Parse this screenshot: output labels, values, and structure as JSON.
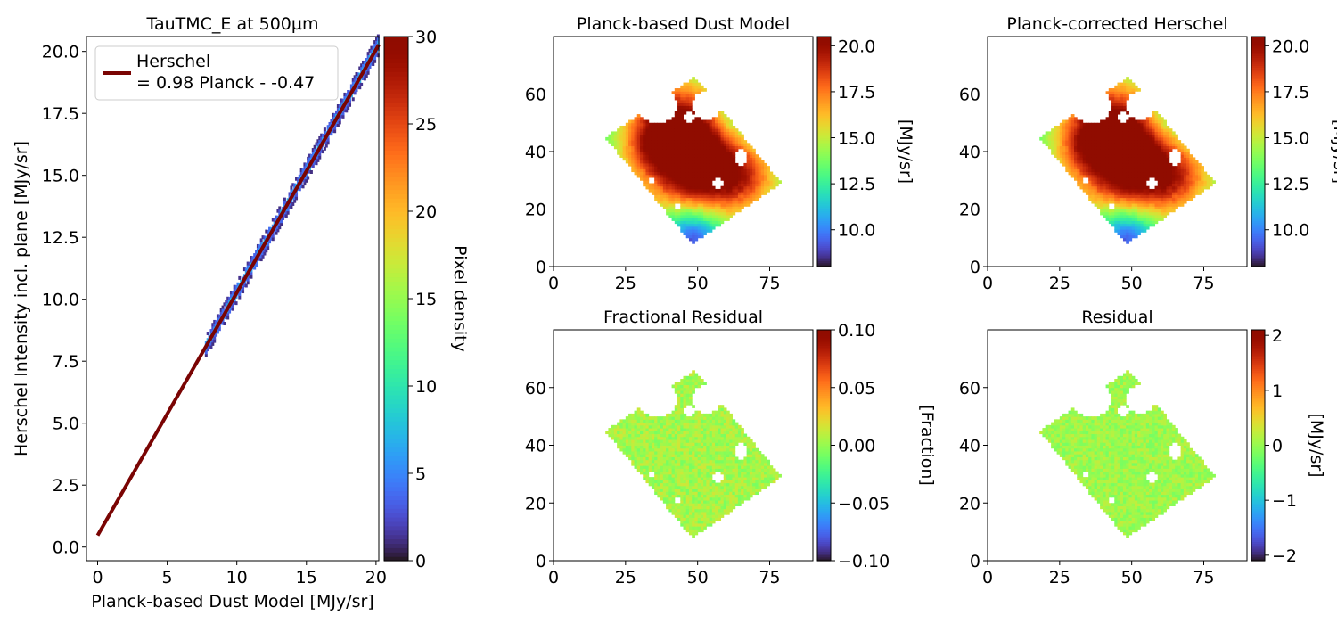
{
  "chart_data": [
    {
      "id": "scatter",
      "type": "heatmap",
      "title": "TauTMC_E at 500µm",
      "xlabel": "Planck-based Dust Model [MJy/sr]",
      "ylabel": "Herschel Intensity incl. plane [MJy/sr]",
      "xlim": [
        -0.8,
        20.2
      ],
      "ylim": [
        -0.55,
        20.6
      ],
      "xticks": [
        0,
        5,
        10,
        15,
        20
      ],
      "yticks": [
        0.0,
        2.5,
        5.0,
        7.5,
        10.0,
        12.5,
        15.0,
        17.5,
        20.0
      ],
      "xtick_labels": [
        "0",
        "5",
        "10",
        "15",
        "20"
      ],
      "ytick_labels": [
        "0.0",
        "2.5",
        "5.0",
        "7.5",
        "10.0",
        "12.5",
        "15.0",
        "17.5",
        "20.0"
      ],
      "fit": {
        "slope": 0.98,
        "intercept": 0.47,
        "x": [
          0,
          20.2
        ],
        "color": "#7a0403"
      },
      "legend": {
        "line1": "Herschel",
        "line2": "= 0.98 Planck - -0.47",
        "position": "upper left"
      },
      "density_x_range": [
        7.8,
        20.2
      ],
      "colorbar": {
        "label": "Pixel density",
        "min": 0,
        "max": 30,
        "ticks": [
          0,
          5,
          10,
          15,
          20,
          25,
          30
        ],
        "tick_labels": [
          "0",
          "5",
          "10",
          "15",
          "20",
          "25",
          "30"
        ]
      },
      "grid": false
    },
    {
      "id": "model",
      "type": "heatmap",
      "title": "Planck-based Dust Model",
      "xlim": [
        0,
        90
      ],
      "ylim": [
        0,
        80
      ],
      "xticks": [
        0,
        25,
        50,
        75
      ],
      "yticks": [
        0,
        20,
        40,
        60
      ],
      "xtick_labels": [
        "0",
        "25",
        "50",
        "75"
      ],
      "ytick_labels": [
        "0",
        "20",
        "40",
        "60"
      ],
      "footprint_corners": [
        [
          48,
          8
        ],
        [
          79,
          29
        ],
        [
          49,
          66
        ],
        [
          18,
          45
        ]
      ],
      "value_range": [
        8,
        20.5
      ],
      "colorbar": {
        "label": "[MJy/sr]",
        "min": 8,
        "max": 20.5,
        "ticks": [
          10,
          12.5,
          15,
          17.5,
          20
        ],
        "tick_labels": [
          "10.0",
          "12.5",
          "15.0",
          "17.5",
          "20.0"
        ]
      }
    },
    {
      "id": "corrected",
      "type": "heatmap",
      "title": "Planck-corrected Herschel",
      "xlim": [
        0,
        90
      ],
      "ylim": [
        0,
        80
      ],
      "xticks": [
        0,
        25,
        50,
        75
      ],
      "yticks": [
        0,
        20,
        40,
        60
      ],
      "xtick_labels": [
        "0",
        "25",
        "50",
        "75"
      ],
      "ytick_labels": [
        "0",
        "20",
        "40",
        "60"
      ],
      "footprint_corners": [
        [
          48,
          8
        ],
        [
          79,
          29
        ],
        [
          49,
          66
        ],
        [
          18,
          45
        ]
      ],
      "value_range": [
        8,
        20.5
      ],
      "colorbar": {
        "label": "[MJy/sr]",
        "min": 8,
        "max": 20.5,
        "ticks": [
          10,
          12.5,
          15,
          17.5,
          20
        ],
        "tick_labels": [
          "10.0",
          "12.5",
          "15.0",
          "17.5",
          "20.0"
        ]
      }
    },
    {
      "id": "fracres",
      "type": "heatmap",
      "title": "Fractional Residual",
      "xlim": [
        0,
        90
      ],
      "ylim": [
        0,
        80
      ],
      "xticks": [
        0,
        25,
        50,
        75
      ],
      "yticks": [
        0,
        20,
        40,
        60
      ],
      "xtick_labels": [
        "0",
        "25",
        "50",
        "75"
      ],
      "ytick_labels": [
        "0",
        "20",
        "40",
        "60"
      ],
      "footprint_corners": [
        [
          48,
          8
        ],
        [
          79,
          29
        ],
        [
          49,
          66
        ],
        [
          18,
          45
        ]
      ],
      "value_range": [
        -0.1,
        0.1
      ],
      "colorbar": {
        "label": "[Fraction]",
        "min": -0.1,
        "max": 0.1,
        "ticks": [
          -0.1,
          -0.05,
          0,
          0.05,
          0.1
        ],
        "tick_labels": [
          "−0.10",
          "−0.05",
          "0.00",
          "0.05",
          "0.10"
        ]
      }
    },
    {
      "id": "res",
      "type": "heatmap",
      "title": "Residual",
      "xlim": [
        0,
        90
      ],
      "ylim": [
        0,
        80
      ],
      "xticks": [
        0,
        25,
        50,
        75
      ],
      "yticks": [
        0,
        20,
        40,
        60
      ],
      "xtick_labels": [
        "0",
        "25",
        "50",
        "75"
      ],
      "ytick_labels": [
        "0",
        "20",
        "40",
        "60"
      ],
      "footprint_corners": [
        [
          48,
          8
        ],
        [
          79,
          29
        ],
        [
          49,
          66
        ],
        [
          18,
          45
        ]
      ],
      "value_range": [
        -2.1,
        2.1
      ],
      "colorbar": {
        "label": "[MJy/sr]",
        "min": -2.1,
        "max": 2.1,
        "ticks": [
          -2,
          -1,
          0,
          1,
          2
        ],
        "tick_labels": [
          "−2",
          "−1",
          "0",
          "1",
          "2"
        ]
      }
    }
  ]
}
